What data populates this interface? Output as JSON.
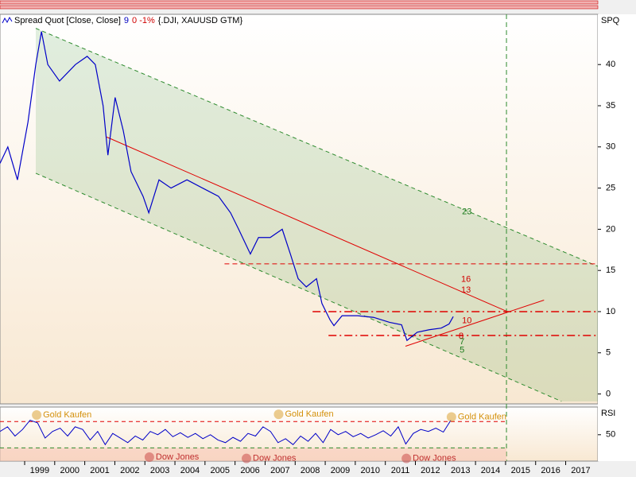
{
  "chart_data": {
    "type": "line",
    "title": "Spread Quot [Close, Close]",
    "legend_parts": [
      {
        "text": "9",
        "color": "#0000c0"
      },
      {
        "text": "0 -1%",
        "color": "#d00000"
      },
      {
        "text": "{.DJI, XAUUSD GTM}",
        "color": "#000000"
      }
    ],
    "y_label": "SPQ",
    "xlim": [
      1998.18,
      2018.07
    ],
    "xticks": [
      {
        "value": 1999,
        "label": "1999"
      },
      {
        "value": 2000,
        "label": "2000"
      },
      {
        "value": 2001,
        "label": "2001"
      },
      {
        "value": 2002,
        "label": "2002"
      },
      {
        "value": 2003,
        "label": "2003"
      },
      {
        "value": 2004,
        "label": "2004"
      },
      {
        "value": 2005,
        "label": "2005"
      },
      {
        "value": 2006,
        "label": "2006"
      },
      {
        "value": 2007,
        "label": "2007"
      },
      {
        "value": 2008,
        "label": "2008"
      },
      {
        "value": 2009,
        "label": "2009"
      },
      {
        "value": 2010,
        "label": "2010"
      },
      {
        "value": 2011,
        "label": "2011"
      },
      {
        "value": 2012,
        "label": "2012"
      },
      {
        "value": 2013,
        "label": "2013"
      },
      {
        "value": 2014,
        "label": "2014"
      },
      {
        "value": 2015,
        "label": "2015"
      },
      {
        "value": 2016,
        "label": "2016"
      },
      {
        "value": 2017,
        "label": "2017"
      }
    ],
    "ylim": [
      -1.2,
      46.1
    ],
    "yticks": [
      0,
      5,
      10,
      15,
      20,
      25,
      30,
      35,
      40
    ],
    "series": [
      {
        "name": "SPQ",
        "color": "#0000c8",
        "x": [
          1998.18,
          1998.44,
          1998.76,
          1999.11,
          1999.37,
          1999.56,
          1999.77,
          2000.16,
          2000.69,
          2001.08,
          2001.35,
          2001.61,
          2001.77,
          2002.01,
          2002.28,
          2002.54,
          2002.94,
          2003.13,
          2003.47,
          2003.87,
          2004.4,
          2004.92,
          2005.45,
          2005.85,
          2006.12,
          2006.51,
          2006.78,
          2007.17,
          2007.57,
          2007.84,
          2008.1,
          2008.37,
          2008.71,
          2008.89,
          2009.16,
          2009.29,
          2009.56,
          2010.08,
          2010.61,
          2011.14,
          2011.54,
          2011.72,
          2012.06,
          2012.46,
          2012.86,
          2013.12,
          2013.26
        ],
        "values": [
          28,
          30,
          26,
          33,
          40,
          44,
          40,
          38,
          40,
          41,
          40,
          35,
          29,
          36,
          32,
          27,
          24,
          22,
          26,
          25,
          26,
          25,
          24,
          22,
          20,
          17,
          19,
          19,
          20,
          17,
          14,
          13,
          14,
          11,
          9,
          8.3,
          9.5,
          9.5,
          9.3,
          8.7,
          8.4,
          6.5,
          7.5,
          7.8,
          8,
          8.5,
          9.4
        ]
      }
    ],
    "channel": {
      "color": "#2e8b2e",
      "upper": {
        "x": [
          1999.37,
          2018.07
        ],
        "y": [
          44.4,
          15.5
        ]
      },
      "lower": {
        "x": [
          1999.37,
          2016.86
        ],
        "y": [
          26.8,
          -0.9
        ]
      }
    },
    "lines": [
      {
        "x": [
          2001.73,
          2015.06
        ],
        "y": [
          31.2,
          10
        ],
        "color": "#e00000",
        "style": "solid"
      },
      {
        "x": [
          2011.67,
          2016.28
        ],
        "y": [
          5.8,
          11.4
        ],
        "color": "#e00000",
        "style": "solid"
      },
      {
        "x": [
          2005.65,
          2018.07
        ],
        "y": [
          15.8,
          15.8
        ],
        "color": "#e00000",
        "style": "dashed"
      },
      {
        "x": [
          2008.58,
          2018.07
        ],
        "y": [
          10,
          10
        ],
        "color": "#e00000",
        "style": "dashdot"
      },
      {
        "x": [
          2009.11,
          2018.07
        ],
        "y": [
          7.1,
          7.1
        ],
        "color": "#e00000",
        "style": "dashdot"
      }
    ],
    "vline": {
      "x": 2015.03,
      "color": "#2e8b2e"
    },
    "annotations": [
      {
        "text": "23",
        "x": 2013.55,
        "y": 22.1,
        "color": "#1a7a1a"
      },
      {
        "text": "16",
        "x": 2013.52,
        "y": 13.9,
        "color": "#d00000"
      },
      {
        "text": "13",
        "x": 2013.52,
        "y": 12.6,
        "color": "#d00000"
      },
      {
        "text": "10",
        "x": 2013.55,
        "y": 8.9,
        "color": "#d00000"
      },
      {
        "text": "8",
        "x": 2013.44,
        "y": 7.0,
        "color": "#d00000"
      },
      {
        "text": "7",
        "x": 2013.47,
        "y": 6.3,
        "color": "#1a7a1a"
      },
      {
        "text": "5",
        "x": 2013.47,
        "y": 5.3,
        "color": "#1a7a1a"
      }
    ],
    "rsi": {
      "label": "RSI",
      "color": "#0000c8",
      "ylim": [
        10,
        92
      ],
      "yticks": [
        50
      ],
      "levels": [
        {
          "value": 70,
          "color": "#e00000"
        },
        {
          "value": 30,
          "color": "#2e8b2e"
        }
      ],
      "x": [
        1998.18,
        1998.43,
        1998.68,
        1998.93,
        1999.18,
        1999.43,
        1999.68,
        1999.93,
        2000.18,
        2000.43,
        2000.68,
        2000.93,
        2001.18,
        2001.43,
        2001.68,
        2001.93,
        2002.18,
        2002.43,
        2002.68,
        2002.93,
        2003.18,
        2003.43,
        2003.68,
        2003.93,
        2004.18,
        2004.43,
        2004.68,
        2004.93,
        2005.18,
        2005.43,
        2005.68,
        2005.93,
        2006.18,
        2006.43,
        2006.68,
        2006.93,
        2007.18,
        2007.43,
        2007.68,
        2007.93,
        2008.18,
        2008.43,
        2008.68,
        2008.93,
        2009.18,
        2009.43,
        2009.68,
        2009.93,
        2010.18,
        2010.43,
        2010.68,
        2010.93,
        2011.18,
        2011.43,
        2011.68,
        2011.93,
        2012.18,
        2012.43,
        2012.68,
        2012.93,
        2013.18
      ],
      "values": [
        55,
        62,
        48,
        58,
        72,
        68,
        45,
        55,
        60,
        48,
        62,
        58,
        42,
        55,
        35,
        52,
        45,
        38,
        48,
        42,
        55,
        50,
        58,
        47,
        53,
        46,
        52,
        44,
        50,
        42,
        38,
        46,
        40,
        52,
        48,
        62,
        55,
        38,
        44,
        35,
        48,
        40,
        52,
        38,
        58,
        50,
        55,
        47,
        52,
        45,
        50,
        56,
        48,
        62,
        36,
        52,
        58,
        55,
        60,
        54,
        72
      ]
    },
    "rsi_annotations": [
      {
        "text": "Gold Kaufen",
        "x": 1999.4,
        "y": 80,
        "color": "#d4900a"
      },
      {
        "text": "Gold Kaufen",
        "x": 2007.45,
        "y": 81,
        "color": "#d4900a"
      },
      {
        "text": "Gold Kaufen",
        "x": 2013.2,
        "y": 77,
        "color": "#d4900a"
      },
      {
        "text": "Dow Jones",
        "x": 2003.15,
        "y": 16,
        "color": "#c03030"
      },
      {
        "text": "Dow Jones",
        "x": 2006.38,
        "y": 14,
        "color": "#c03030"
      },
      {
        "text": "Dow Jones",
        "x": 2011.7,
        "y": 14,
        "color": "#c03030"
      }
    ]
  }
}
